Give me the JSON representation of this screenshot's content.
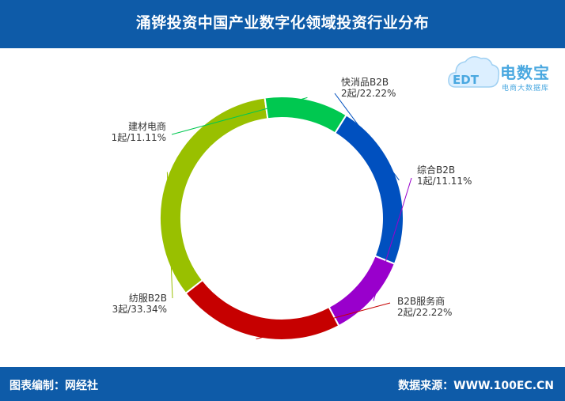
{
  "header": {
    "title": "涌铧投资中国产业数字化领域投资行业分布"
  },
  "footer": {
    "left_text": "图表编制：网经社",
    "right_text": "数据来源：WWW.100EC.CN"
  },
  "logo": {
    "brand_text": "电数宝",
    "sub_text": "电商大数据库",
    "mark_text": "EDT"
  },
  "chart_data": {
    "type": "pie",
    "donut": true,
    "categories": [
      "快消品B2B",
      "综合B2B",
      "B2B服务商",
      "纺服B2B",
      "建材电商"
    ],
    "values": [
      2,
      1,
      2,
      3,
      1
    ],
    "value_labels": [
      "2起/22.22%",
      "1起/11.11%",
      "2起/22.22%",
      "3起/33.34%",
      "1起/11.11%"
    ],
    "colors": [
      "#0050bf",
      "#9900cc",
      "#c60000",
      "#99c000",
      "#00c850"
    ],
    "start_angle_deg": -58,
    "direction": "clockwise"
  }
}
